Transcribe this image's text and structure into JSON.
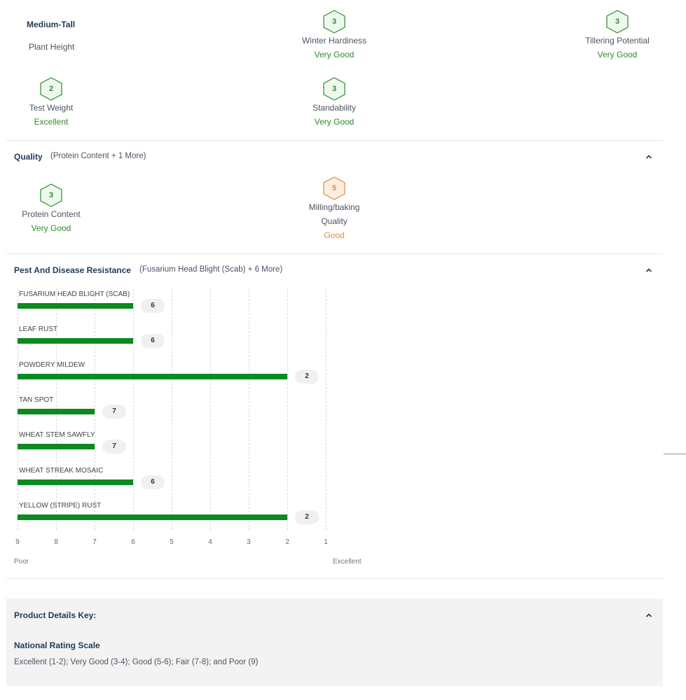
{
  "agronomics": {
    "plant_height": {
      "value": "Medium-Tall",
      "label": "Plant Height"
    },
    "traits": [
      {
        "score": "3",
        "label": "Winter Hardiness",
        "rating": "Very Good"
      },
      {
        "score": "3",
        "label": "Tillering Potential",
        "rating": "Very Good"
      },
      {
        "score": "2",
        "label": "Test Weight",
        "rating": "Excellent"
      },
      {
        "score": "3",
        "label": "Standability",
        "rating": "Very Good"
      }
    ]
  },
  "quality": {
    "title": "Quality",
    "subtitle": "(Protein Content + 1 More)",
    "traits": [
      {
        "score": "3",
        "label": "Protein Content",
        "rating": "Very Good"
      },
      {
        "score": "5",
        "label_line1": "Milling/baking",
        "label_line2": "Quality",
        "rating": "Good"
      }
    ]
  },
  "pest": {
    "title": "Pest And Disease Resistance",
    "subtitle": "(Fusarium Head Blight (Scab) + 6 More)"
  },
  "chart_data": {
    "type": "bar",
    "orientation": "horizontal",
    "categories": [
      "FUSARIUM HEAD BLIGHT (SCAB)",
      "LEAF RUST",
      "POWDERY MILDEW",
      "TAN SPOT",
      "WHEAT STEM SAWFLY",
      "WHEAT STREAK MOSAIC",
      "YELLOW (STRIPE) RUST"
    ],
    "values": [
      6,
      6,
      2,
      7,
      7,
      6,
      2
    ],
    "x_ticks": [
      "9",
      "8",
      "7",
      "6",
      "5",
      "4",
      "3",
      "2",
      "1"
    ],
    "xlim": [
      9,
      1
    ],
    "x_min_label": "Poor",
    "x_max_label": "Excellent",
    "grid": true,
    "bar_color": "#0b8a1f"
  },
  "key": {
    "title": "Product Details Key:",
    "scale_title": "National Rating Scale",
    "scale_text": "Excellent (1-2); Very Good (3-4); Good (5-6); Fair (7-8); and Poor (9)"
  },
  "colors": {
    "green": "#2e8b2e",
    "orange": "#e28a3b",
    "bar": "#0b8a1f"
  }
}
